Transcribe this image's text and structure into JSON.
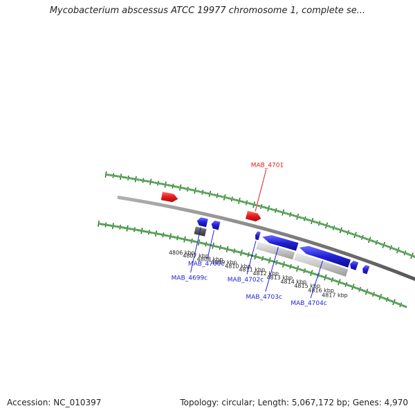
{
  "title": "Mycobacterium abscessus ATCC 19977 chromosome 1, complete se...",
  "footer": {
    "accession": "Accession: NC_010397",
    "summary": "Topology: circular; Length: 5,067,172 bp; Genes: 4,970"
  },
  "colors": {
    "forward_gene": "#e41a1c",
    "reverse_gene": "#1f1fd6",
    "pseudo_gene": "#555555",
    "light_feature": "#c8c8c8",
    "backbone": "#888888",
    "ticks": "#1a7a1a",
    "reverse_label": "#1f1fd6",
    "forward_label": "#e41a1c"
  },
  "tick_labels": [
    {
      "kbp": 4806,
      "text": "4806 kbp"
    },
    {
      "kbp": 4807,
      "text": "4807 kbp"
    },
    {
      "kbp": 4808,
      "text": "4808 kbp"
    },
    {
      "kbp": 4809,
      "text": "4809 kbp"
    },
    {
      "kbp": 4810,
      "text": "4810 kbp"
    },
    {
      "kbp": 4811,
      "text": "4811 kbp"
    },
    {
      "kbp": 4812,
      "text": "4812 kbp"
    },
    {
      "kbp": 4813,
      "text": "4813 kbp"
    },
    {
      "kbp": 4814,
      "text": "4814 kbp"
    },
    {
      "kbp": 4815,
      "text": "4815 kbp"
    },
    {
      "kbp": 4816,
      "text": "4816 kbp"
    },
    {
      "kbp": 4817,
      "text": "4817 kbp"
    }
  ],
  "genes": [
    {
      "label": "",
      "strand": "forward",
      "start": 4803.9,
      "end": 4805.0
    },
    {
      "label": "MAB_4701",
      "strand": "forward",
      "start": 4809.7,
      "end": 4810.7
    },
    {
      "label": "MAB_4699c",
      "strand": "reverse",
      "start": 4806.55,
      "end": 4807.25
    },
    {
      "label": "MAB_4700c",
      "strand": "reverse",
      "start": 4807.55,
      "end": 4808.1
    },
    {
      "label": "MAB_4702c",
      "strand": "reverse",
      "start": 4810.6,
      "end": 4810.9
    },
    {
      "label": "MAB_4703c",
      "strand": "reverse",
      "start": 4811.1,
      "end": 4813.55
    },
    {
      "label": "MAB_4704c",
      "strand": "reverse",
      "start": 4813.7,
      "end": 4817.25
    },
    {
      "label": "",
      "strand": "reverse",
      "start": 4817.3,
      "end": 4817.8
    },
    {
      "label": "",
      "strand": "reverse",
      "start": 4818.2,
      "end": 4818.6
    }
  ],
  "features": [
    {
      "kind": "pseudo",
      "start": 4806.55,
      "end": 4807.3
    },
    {
      "kind": "light",
      "start": 4810.9,
      "end": 4813.5
    },
    {
      "kind": "light",
      "start": 4813.6,
      "end": 4817.3
    }
  ]
}
